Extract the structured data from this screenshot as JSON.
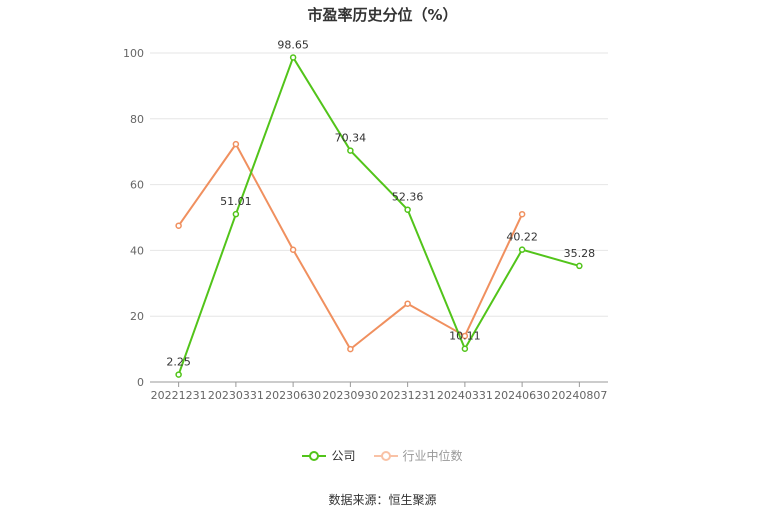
{
  "chart_data": {
    "type": "line",
    "title": "市盈率历史分位（%）",
    "categories": [
      "20221231",
      "20230331",
      "20230630",
      "20230930",
      "20231231",
      "20240331",
      "20240630",
      "20240807"
    ],
    "ylim": [
      0,
      100
    ],
    "yticks": [
      0,
      20,
      40,
      60,
      80,
      100
    ],
    "grid": true,
    "legend_position": "bottom",
    "series": [
      {
        "name": "公司",
        "color": "#52c41a",
        "values": [
          2.25,
          51.01,
          98.65,
          70.34,
          52.36,
          10.11,
          40.22,
          35.28
        ],
        "labels": [
          "2.25",
          "51.01",
          "98.65",
          "70.34",
          "52.36",
          "10.11",
          "40.22",
          "35.28"
        ]
      },
      {
        "name": "行业中位数",
        "color": "#f0905f",
        "values": [
          47.5,
          72.3,
          40.2,
          10,
          23.8,
          14,
          51,
          null
        ]
      }
    ]
  },
  "source_text": "数据来源：恒生聚源"
}
